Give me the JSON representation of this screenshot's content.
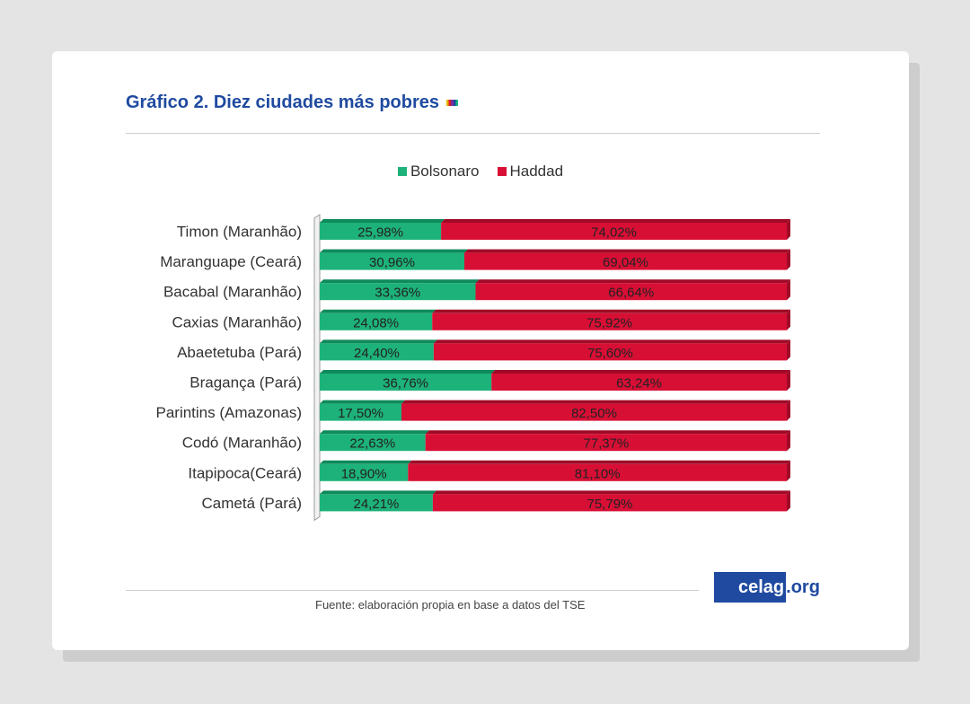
{
  "title": "Gráfico 2. Diez ciudades más pobres",
  "colors": {
    "title": "#1f4aa0",
    "bolsonaro": "#1db27a",
    "haddad": "#d80f35"
  },
  "chart_data": {
    "type": "bar",
    "orientation": "horizontal",
    "stacked": true,
    "categories": [
      "Timon (Maranhão)",
      "Maranguape (Ceará)",
      "Bacabal (Maranhão)",
      "Caxias (Maranhão)",
      "Abaetetuba (Pará)",
      "Bragança (Pará)",
      "Parintins (Amazonas)",
      "Codó (Maranhão)",
      "Itapipoca(Ceará)",
      "Cametá  (Pará)"
    ],
    "series": [
      {
        "name": "Bolsonaro",
        "color": "#1db27a",
        "values": [
          25.98,
          30.96,
          33.36,
          24.08,
          24.4,
          36.76,
          17.5,
          22.63,
          18.9,
          24.21
        ],
        "labels": [
          "25,98%",
          "30,96%",
          "33,36%",
          "24,08%",
          "24,40%",
          "36,76%",
          "17,50%",
          "22,63%",
          "18,90%",
          "24,21%"
        ]
      },
      {
        "name": "Haddad",
        "color": "#d80f35",
        "values": [
          74.02,
          69.04,
          66.64,
          75.92,
          75.6,
          63.24,
          82.5,
          77.37,
          81.1,
          75.79
        ],
        "labels": [
          "74,02%",
          "69,04%",
          "66,64%",
          "75,92%",
          "75,60%",
          "63,24%",
          "82,50%",
          "77,37%",
          "81,10%",
          "75,79%"
        ]
      }
    ],
    "xlim": [
      0,
      100
    ],
    "legend_position": "top-center",
    "grid": false
  },
  "source": "Fuente: elaboración propia en base a datos del TSE",
  "logo": {
    "main": "celag",
    "ext": ".org"
  }
}
